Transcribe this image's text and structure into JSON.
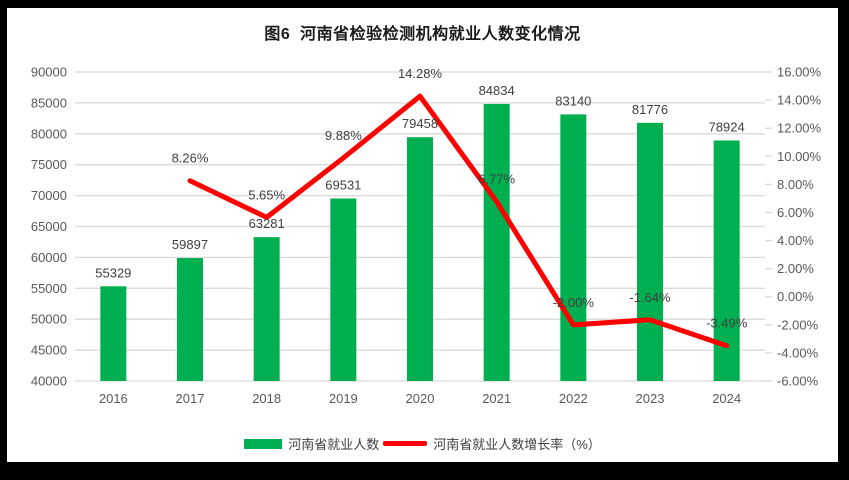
{
  "page": {
    "background_color": "#000000",
    "surface_color": "#ffffff"
  },
  "chart_data": {
    "type": "bar",
    "title": "图6  河南省检验检测机构就业人数变化情况",
    "categories": [
      "2016",
      "2017",
      "2018",
      "2019",
      "2020",
      "2021",
      "2022",
      "2023",
      "2024"
    ],
    "series": [
      {
        "name": "河南省就业人数",
        "chart_type": "bar",
        "axis": "left",
        "color": "#00B050",
        "values": [
          55329,
          59897,
          63281,
          69531,
          79458,
          84834,
          83140,
          81776,
          78924
        ],
        "labels": [
          "55329",
          "59897",
          "63281",
          "69531",
          "79458",
          "84834",
          "83140",
          "81776",
          "78924"
        ]
      },
      {
        "name": "河南省就业人数增长率（%）",
        "chart_type": "line",
        "axis": "right",
        "color": "#FF0000",
        "values": [
          null,
          8.26,
          5.65,
          9.88,
          14.28,
          6.77,
          -2.0,
          -1.64,
          -3.49
        ],
        "labels": [
          null,
          "8.26%",
          "5.65%",
          "9.88%",
          "14.28%",
          "6.77%",
          "-2.00%",
          "-1.64%",
          "-3.49%"
        ]
      }
    ],
    "left_axis": {
      "min": 40000,
      "max": 90000,
      "step": 5000,
      "tick_labels": [
        "90000",
        "85000",
        "80000",
        "75000",
        "70000",
        "65000",
        "60000",
        "55000",
        "50000",
        "45000",
        "40000"
      ]
    },
    "right_axis": {
      "min": -6,
      "max": 16,
      "step": 2,
      "tick_labels": [
        "16.00%",
        "14.00%",
        "12.00%",
        "10.00%",
        "8.00%",
        "6.00%",
        "4.00%",
        "2.00%",
        "0.00%",
        "-2.00%",
        "-4.00%",
        "-6.00%"
      ]
    },
    "grid": true,
    "legend_position": "bottom",
    "gridline_color": "#D9D9D9",
    "axis_label_color": "#595959",
    "data_label_color": "#404040"
  }
}
